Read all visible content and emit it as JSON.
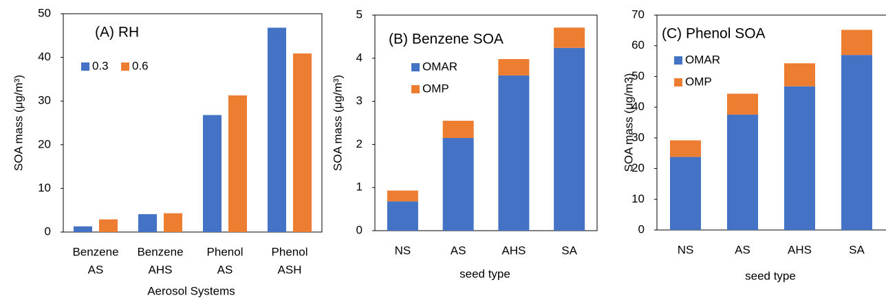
{
  "chart_data": [
    {
      "type": "bar",
      "title": "(A) RH",
      "ylabel": "SOA mass (μg/m³)",
      "xlabel": "Aerosol Systems",
      "categories": [
        [
          "Benzene",
          "AS"
        ],
        [
          "Benzene",
          "AHS"
        ],
        [
          "Phenol",
          "AS"
        ],
        [
          "Phenol",
          "ASH"
        ]
      ],
      "series": [
        {
          "name": "0.3",
          "color": "#4472c4",
          "values": [
            1.3,
            4.1,
            26.8,
            46.8
          ]
        },
        {
          "name": "0.6",
          "color": "#ed7d31",
          "values": [
            2.9,
            4.3,
            31.3,
            40.9
          ]
        }
      ],
      "ylim": [
        0,
        50
      ],
      "yticks": [
        0,
        10,
        20,
        30,
        40,
        50
      ],
      "legend": "top-left-horizontal"
    },
    {
      "type": "stacked_bar",
      "title": "(B) Benzene SOA",
      "ylabel": "SOA mass (μg/m³)",
      "xlabel": "seed type",
      "categories": [
        [
          "NS"
        ],
        [
          "AS"
        ],
        [
          "AHS"
        ],
        [
          "SA"
        ]
      ],
      "series": [
        {
          "name": "OMAR",
          "color": "#4472c4",
          "values": [
            0.68,
            2.15,
            3.6,
            4.24
          ]
        },
        {
          "name": "OMP",
          "color": "#ed7d31",
          "values": [
            0.25,
            0.4,
            0.38,
            0.47
          ]
        }
      ],
      "ylim": [
        0,
        5
      ],
      "yticks": [
        0,
        1,
        2,
        3,
        4,
        5
      ],
      "legend": "top-left-vertical"
    },
    {
      "type": "stacked_bar",
      "title": "(C) Phenol SOA",
      "ylabel": "SOA mass (μg/m3)",
      "xlabel": "seed type",
      "categories": [
        [
          "NS"
        ],
        [
          "AS"
        ],
        [
          "AHS"
        ],
        [
          "SA"
        ]
      ],
      "series": [
        {
          "name": "OMAR",
          "color": "#4472c4",
          "values": [
            23.8,
            37.6,
            46.8,
            57
          ]
        },
        {
          "name": "OMP",
          "color": "#ed7d31",
          "values": [
            5.4,
            6.8,
            7.5,
            8.2
          ]
        }
      ],
      "ylim": [
        0,
        70
      ],
      "yticks": [
        0,
        10,
        20,
        30,
        40,
        50,
        60,
        70
      ],
      "legend": "top-left-vertical"
    }
  ]
}
